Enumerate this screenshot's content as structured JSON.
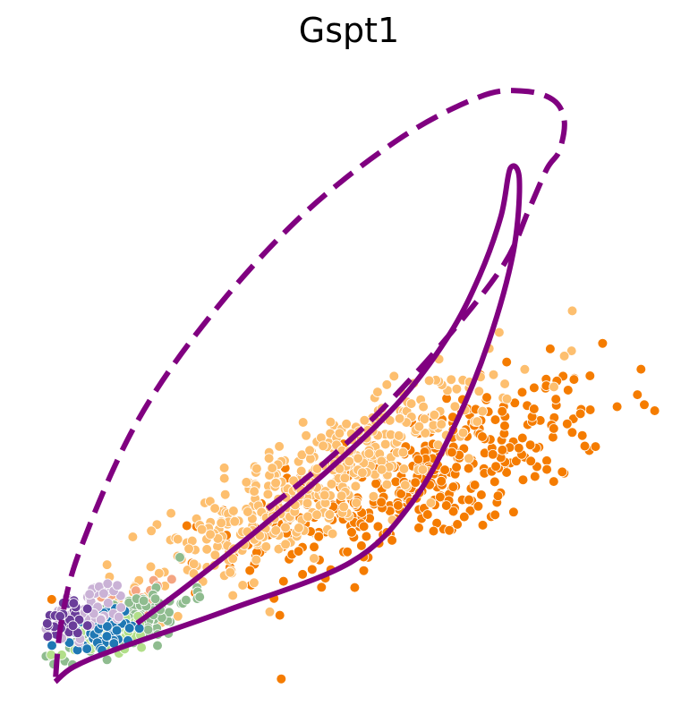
{
  "chart_data": {
    "type": "scatter",
    "title": "Gspt1",
    "xlabel": "",
    "ylabel": "",
    "xlim": [
      0,
      100
    ],
    "ylim": [
      0,
      100
    ],
    "grid": false,
    "axes_visible": false,
    "legend": "none",
    "colors": {
      "dark_orange": "#f57c00",
      "light_orange": "#fdbf6f",
      "salmon": "#f4a582",
      "sage_green": "#8fbc8f",
      "light_green": "#b2df8a",
      "blue": "#1f78b4",
      "lavender": "#cab2d6",
      "purple": "#6a3d9a",
      "curve": "#800080"
    },
    "series": [
      {
        "name": "",
        "color": "#f57c00",
        "center": [
          62,
          34
        ],
        "spread": [
          15,
          6
        ],
        "slope": 0.38,
        "count": 380
      },
      {
        "name": "",
        "color": "#fdbf6f",
        "center": [
          44,
          33
        ],
        "spread": [
          14,
          4.5
        ],
        "slope": 0.55,
        "count": 430
      },
      {
        "name": "",
        "color": "#f4a582",
        "center": [
          14,
          12
        ],
        "spread": [
          4,
          2.5
        ],
        "slope": 0.5,
        "count": 30
      },
      {
        "name": "",
        "color": "#8fbc8f",
        "center": [
          14,
          10
        ],
        "spread": [
          5,
          2.2
        ],
        "slope": 0.4,
        "count": 140
      },
      {
        "name": "",
        "color": "#b2df8a",
        "center": [
          11,
          8
        ],
        "spread": [
          3.5,
          2
        ],
        "slope": 0.3,
        "count": 40
      },
      {
        "name": "",
        "color": "#1f78b4",
        "center": [
          10,
          9
        ],
        "spread": [
          3.5,
          2
        ],
        "slope": 0.3,
        "count": 60
      },
      {
        "name": "",
        "color": "#cab2d6",
        "center": [
          8,
          12
        ],
        "spread": [
          3.5,
          2.2
        ],
        "slope": 0.3,
        "count": 50
      },
      {
        "name": "",
        "color": "#6a3d9a",
        "center": [
          4,
          11
        ],
        "spread": [
          2,
          2
        ],
        "slope": 0.2,
        "count": 28
      }
    ],
    "curves": [
      {
        "style": "solid",
        "color": "#800080",
        "points": [
          [
            15.3,
            9.8
          ],
          [
            24,
            16.5
          ],
          [
            35,
            25.5
          ],
          [
            47,
            36
          ],
          [
            58,
            47
          ],
          [
            66,
            58
          ],
          [
            71,
            68
          ],
          [
            74.5,
            78
          ],
          [
            76,
            86
          ],
          [
            77.5,
            84
          ],
          [
            76.5,
            72
          ],
          [
            72.5,
            57
          ],
          [
            67,
            43
          ],
          [
            60,
            30
          ],
          [
            50,
            20
          ],
          [
            30,
            12
          ],
          [
            12,
            5.5
          ],
          [
            5,
            2.5
          ],
          [
            2,
            0
          ]
        ]
      },
      {
        "style": "dashed",
        "color": "#800080",
        "points": [
          [
            36.5,
            29
          ],
          [
            45,
            36
          ],
          [
            55,
            45.5
          ],
          [
            66,
            58
          ],
          [
            75,
            70
          ],
          [
            79,
            79
          ],
          [
            82,
            86
          ],
          [
            84,
            89
          ],
          [
            84.8,
            94
          ],
          [
            83,
            97.5
          ],
          [
            78,
            99
          ],
          [
            71,
            98
          ],
          [
            58,
            91
          ],
          [
            42,
            78
          ],
          [
            27,
            61
          ],
          [
            15,
            43
          ],
          [
            6,
            22
          ],
          [
            3,
            10
          ],
          [
            2,
            0
          ]
        ]
      }
    ]
  }
}
